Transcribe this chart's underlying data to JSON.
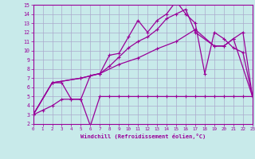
{
  "background_color": "#c8eaea",
  "grid_color": "#aaaacc",
  "line_color": "#990099",
  "xlabel": "Windchill (Refroidissement éolien,°C)",
  "xlim": [
    0,
    23
  ],
  "ylim": [
    2,
    15
  ],
  "xticks": [
    0,
    1,
    2,
    3,
    4,
    5,
    6,
    7,
    8,
    9,
    10,
    11,
    12,
    13,
    14,
    15,
    16,
    17,
    18,
    19,
    20,
    21,
    22,
    23
  ],
  "yticks": [
    2,
    3,
    4,
    5,
    6,
    7,
    8,
    9,
    10,
    11,
    12,
    13,
    14,
    15
  ],
  "line1_x": [
    0,
    1,
    2,
    3,
    4,
    5,
    6,
    7,
    8,
    9,
    10,
    11,
    12,
    13,
    14,
    15,
    16,
    17,
    18,
    19,
    20,
    21,
    22,
    23
  ],
  "line1_y": [
    3.0,
    3.5,
    4.0,
    4.7,
    4.7,
    4.7,
    1.8,
    5.0,
    5.0,
    5.0,
    5.0,
    5.0,
    5.0,
    5.0,
    5.0,
    5.0,
    5.0,
    5.0,
    5.0,
    5.0,
    5.0,
    5.0,
    5.0,
    5.0
  ],
  "line2_x": [
    0,
    2,
    3,
    4,
    5,
    6,
    7,
    8,
    9,
    10,
    11,
    12,
    13,
    14,
    15,
    16,
    17,
    18,
    19,
    20,
    21,
    22,
    23
  ],
  "line2_y": [
    3.0,
    6.5,
    6.5,
    4.7,
    4.7,
    7.3,
    7.5,
    9.5,
    9.7,
    11.5,
    13.3,
    12.0,
    13.3,
    14.0,
    15.4,
    14.0,
    13.0,
    7.5,
    12.0,
    11.3,
    10.3,
    9.8,
    5.0
  ],
  "line3_x": [
    0,
    2,
    5,
    7,
    8,
    9,
    10,
    11,
    12,
    13,
    14,
    15,
    16,
    17,
    19,
    20,
    21,
    22,
    23
  ],
  "line3_y": [
    3.0,
    6.5,
    7.0,
    7.5,
    8.3,
    9.3,
    10.3,
    11.0,
    11.5,
    12.3,
    13.5,
    14.0,
    14.5,
    12.0,
    10.5,
    10.5,
    11.3,
    12.0,
    5.0
  ],
  "line4_x": [
    0,
    2,
    5,
    7,
    9,
    11,
    13,
    15,
    17,
    19,
    20,
    21,
    23
  ],
  "line4_y": [
    3.0,
    6.5,
    7.0,
    7.5,
    8.5,
    9.2,
    10.2,
    11.0,
    12.3,
    10.5,
    10.5,
    11.3,
    5.0
  ]
}
